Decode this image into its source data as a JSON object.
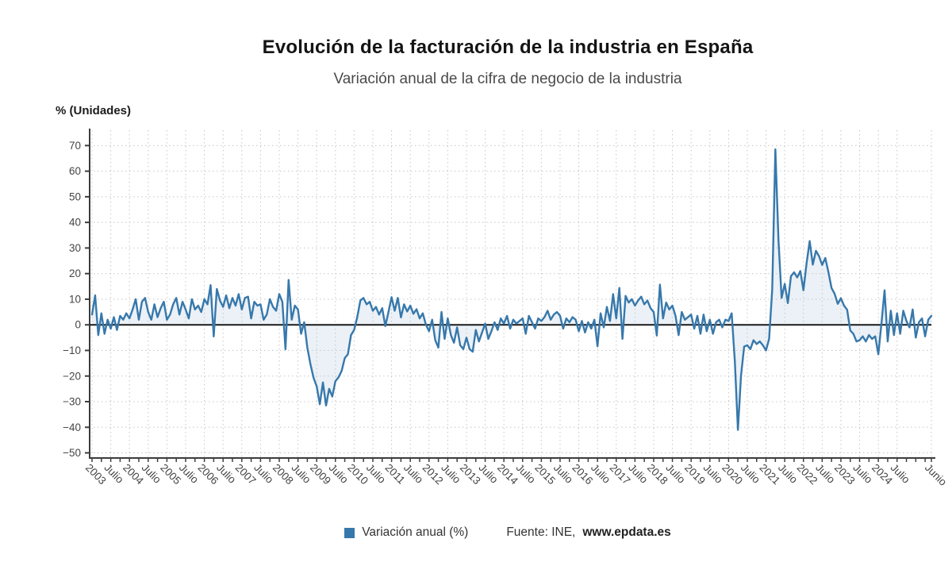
{
  "header": {
    "title": "Evolución de la facturación de la industria en España",
    "subtitle": "Variación anual de la cifra de negocio de la industria"
  },
  "legend": {
    "series_label": "Variación anual (%)",
    "swatch_color": "#3778ab",
    "source_prefix": "Fuente: INE, ",
    "source_link": "www.epdata.es"
  },
  "chart_data": {
    "type": "line",
    "title": "Evolución de la facturación de la industria en España",
    "subtitle": "Variación anual de la cifra de negocio de la industria",
    "ylabel": "% (Unidades)",
    "xlabel": "",
    "grid": true,
    "legend_position": "bottom",
    "ylim": [
      -52,
      76
    ],
    "y_ticks": [
      70,
      60,
      50,
      40,
      30,
      20,
      10,
      0,
      -10,
      -20,
      -30,
      -40,
      -50
    ],
    "x_tick_months": [
      0,
      6,
      12,
      18,
      24,
      30,
      36,
      42,
      48,
      54,
      60,
      66,
      72,
      78,
      84,
      90,
      96,
      102,
      108,
      114,
      120,
      126,
      132,
      138,
      144,
      150,
      156,
      162,
      168,
      174,
      180,
      186,
      192,
      198,
      204,
      210,
      216,
      222,
      228,
      234,
      240,
      246,
      252,
      258,
      269
    ],
    "x_tick_labels": [
      "2003",
      "Julio",
      "2004",
      "Julio",
      "2005",
      "Julio",
      "2006",
      "Julio",
      "2007",
      "Julio",
      "2008",
      "Julio",
      "2009",
      "Julio",
      "2010",
      "Julio",
      "2011",
      "Julio",
      "2012",
      "Julio",
      "2013",
      "Julio",
      "2014",
      "Julio",
      "2015",
      "Julio",
      "2016",
      "Julio",
      "2017",
      "Julio",
      "2018",
      "Julio",
      "2019",
      "Julio",
      "2020",
      "Julio",
      "2021",
      "Julio",
      "2022",
      "Julio",
      "2023",
      "Julio",
      "2024",
      "Julio",
      "Junio"
    ],
    "x_start": "Enero 2003",
    "x_end": "Junio 2025",
    "series": [
      {
        "name": "Variación anual (%)",
        "color": "#3778ab",
        "fill": "rgba(55,120,171,0.10)",
        "monthly_values": [
          4,
          11.5,
          -4,
          4.5,
          -3.5,
          2,
          -1.5,
          3,
          -2,
          3.5,
          2,
          4.5,
          2.5,
          6,
          10,
          2,
          9,
          10.5,
          5,
          2,
          8,
          3,
          6.5,
          9,
          2,
          4,
          8,
          10.5,
          4,
          9,
          6,
          2.5,
          10,
          6,
          7.5,
          5,
          10,
          8,
          15.5,
          -4.5,
          14,
          9.5,
          7,
          11.5,
          6.5,
          10.5,
          7.5,
          12,
          6,
          10.5,
          11,
          2.5,
          9,
          7.5,
          8,
          2,
          4,
          10,
          7,
          5.5,
          12,
          9,
          -9.5,
          17.5,
          2,
          7.5,
          6,
          -3.5,
          1,
          -8.9,
          -15.4,
          -20.7,
          -24,
          -31,
          -22.5,
          -31.5,
          -25,
          -28,
          -22,
          -20.5,
          -18,
          -13,
          -11.5,
          -4,
          -2,
          3,
          9.5,
          10.5,
          8,
          9,
          5.5,
          7,
          4,
          6.5,
          -0.5,
          5,
          10.8,
          5.5,
          10.5,
          2.9,
          8,
          5.2,
          7.5,
          4.3,
          6.1,
          2.5,
          4.5,
          0.1,
          -2.5,
          2,
          -6,
          -8.9,
          5,
          -5.5,
          2.5,
          -4,
          -7,
          -1,
          -8,
          -9.5,
          -5,
          -9.5,
          -10.5,
          -2,
          -6.5,
          -3,
          0.5,
          -5.5,
          -2.5,
          1,
          -2,
          2.5,
          0.5,
          3.5,
          -1.5,
          2,
          0.5,
          1.5,
          2.5,
          -3.5,
          3.5,
          1,
          -1.5,
          2.5,
          1.5,
          3,
          5.5,
          2,
          4,
          5,
          3.5,
          -1.5,
          2.5,
          1,
          3,
          2,
          -2.5,
          1.5,
          -3,
          1,
          -1.5,
          2,
          -8.4,
          4.5,
          -1,
          7,
          1.5,
          12,
          2.5,
          14.4,
          -5.5,
          11.3,
          8.7,
          10,
          7.5,
          9.5,
          11,
          8,
          9.5,
          6.5,
          5,
          -4.2,
          15.7,
          2.5,
          8.7,
          6,
          7.5,
          3.5,
          -4,
          5,
          2,
          3,
          4,
          -1.5,
          3.5,
          -3.5,
          4,
          -2.5,
          2,
          -3.5,
          1,
          2,
          -1,
          2,
          1.5,
          4.5,
          -14,
          -41,
          -19.8,
          -8.5,
          -8,
          -9.5,
          -6,
          -7.5,
          -6.5,
          -8,
          -10,
          -5.5,
          14,
          68.5,
          33,
          10.5,
          16,
          8.5,
          19,
          20.5,
          18.5,
          21,
          13.5,
          24,
          32.7,
          23.5,
          28.9,
          26.8,
          23.4,
          26.1,
          20.6,
          14.4,
          12.1,
          8.2,
          10.4,
          7.5,
          5.9,
          -2.2,
          -3.5,
          -6.5,
          -6,
          -4.5,
          -6.5,
          -4,
          -5.5,
          -4.5,
          -11.5,
          0.5,
          13.5,
          -6.5,
          5.5,
          -4,
          4.5,
          -3.5,
          5.5,
          1.5,
          -1,
          6,
          -5,
          1,
          2.5,
          -4.5,
          2,
          3.5
        ]
      }
    ],
    "style": {
      "grid_color": "#c6c6c6",
      "axis_color": "#3d3d3d",
      "zero_line_color": "#1a1a1a",
      "tick_label_color": "#454545"
    }
  }
}
